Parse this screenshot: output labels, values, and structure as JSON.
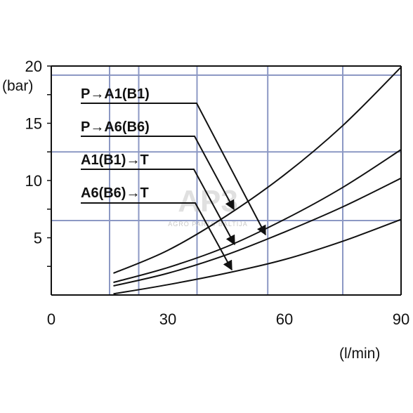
{
  "chart_data": {
    "type": "line",
    "xlabel": "(l/min)",
    "ylabel": "(bar)",
    "xlim": [
      0,
      90
    ],
    "ylim": [
      0,
      20
    ],
    "x_ticks": [
      "0",
      "30",
      "60",
      "90"
    ],
    "y_ticks": [
      "5",
      "10",
      "15",
      "20"
    ],
    "grid": true,
    "series": [
      {
        "name": "P→A1(B1)",
        "x": [
          16,
          30,
          45,
          60,
          75,
          90
        ],
        "y": [
          1.9,
          3.9,
          6.9,
          10.5,
          14.8,
          19.9
        ]
      },
      {
        "name": "P→A6(B6)",
        "x": [
          16,
          30,
          45,
          60,
          75,
          90
        ],
        "y": [
          1.1,
          2.4,
          4.2,
          6.6,
          9.4,
          12.7
        ]
      },
      {
        "name": "A1(B1)→T",
        "x": [
          16,
          30,
          45,
          60,
          75,
          90
        ],
        "y": [
          0.8,
          1.9,
          3.5,
          5.5,
          7.7,
          10.2
        ]
      },
      {
        "name": "A6(B6)→T",
        "x": [
          16,
          30,
          45,
          60,
          75,
          90
        ],
        "y": [
          0.1,
          0.9,
          1.9,
          3.1,
          4.7,
          6.6
        ]
      }
    ]
  },
  "watermark": {
    "logo_text": "AP3",
    "sub_text": "AGRO PARTS BALTIJA"
  }
}
